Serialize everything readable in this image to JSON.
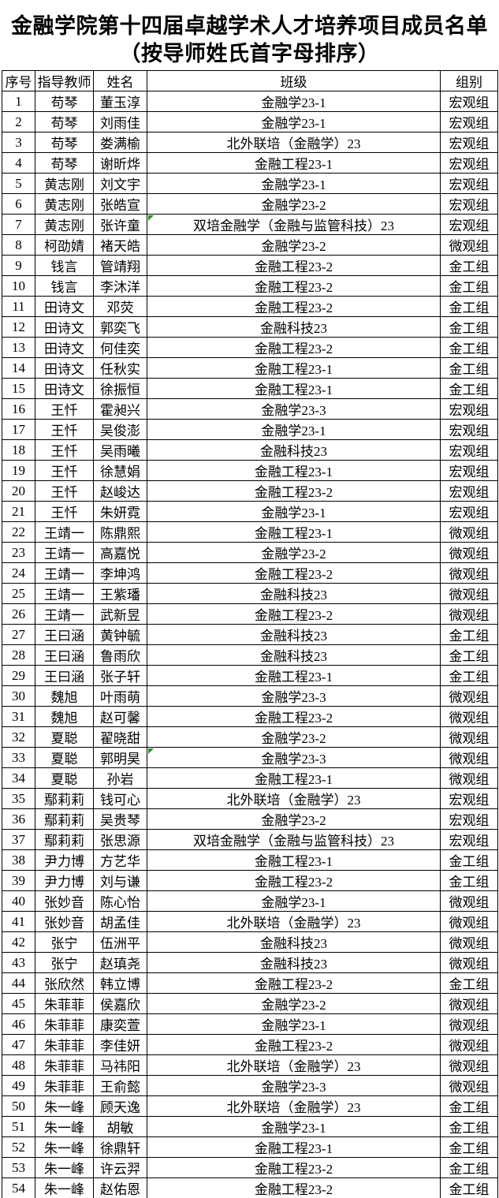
{
  "title": {
    "line1": "金融学院第十四届卓越学术人才培养项目成员名单",
    "line2": "（按导师姓氏首字母排序）"
  },
  "colors": {
    "text": "#000000",
    "border": "#000000",
    "background": "#ffffff",
    "marker_green": "#2e8b2e"
  },
  "table": {
    "headers": [
      "序号",
      "指导教师",
      "姓名",
      "班级",
      "组别"
    ],
    "rows": [
      [
        "1",
        "苟琴",
        "董玉淳",
        "金融学23-1",
        "宏观组"
      ],
      [
        "2",
        "苟琴",
        "刘雨佳",
        "金融学23-1",
        "宏观组"
      ],
      [
        "3",
        "苟琴",
        "娄满榆",
        "北外联培（金融学）23",
        "宏观组"
      ],
      [
        "4",
        "苟琴",
        "谢昕烨",
        "金融工程23-1",
        "宏观组"
      ],
      [
        "5",
        "黄志刚",
        "刘文宇",
        "金融学23-1",
        "宏观组"
      ],
      [
        "6",
        "黄志刚",
        "张皓宣",
        "金融学23-2",
        "宏观组"
      ],
      [
        "7",
        "黄志刚",
        "张许童",
        "双培金融学（金融与监管科技）23",
        "宏观组"
      ],
      [
        "8",
        "柯劭婧",
        "褚天皓",
        "金融学23-2",
        "微观组"
      ],
      [
        "9",
        "钱言",
        "管靖翔",
        "金融工程23-2",
        "金工组"
      ],
      [
        "10",
        "钱言",
        "李沐洋",
        "金融工程23-2",
        "金工组"
      ],
      [
        "11",
        "田诗文",
        "邓荧",
        "金融工程23-2",
        "金工组"
      ],
      [
        "12",
        "田诗文",
        "郭奕飞",
        "金融科技23",
        "金工组"
      ],
      [
        "13",
        "田诗文",
        "何佳奕",
        "金融工程23-2",
        "金工组"
      ],
      [
        "14",
        "田诗文",
        "任秋实",
        "金融工程23-1",
        "金工组"
      ],
      [
        "15",
        "田诗文",
        "徐振恒",
        "金融工程23-1",
        "金工组"
      ],
      [
        "16",
        "王忏",
        "霍昶兴",
        "金融学23-3",
        "宏观组"
      ],
      [
        "17",
        "王忏",
        "吴俊澎",
        "金融学23-1",
        "宏观组"
      ],
      [
        "18",
        "王忏",
        "吴雨曦",
        "金融科技23",
        "宏观组"
      ],
      [
        "19",
        "王忏",
        "徐慧娟",
        "金融工程23-1",
        "宏观组"
      ],
      [
        "20",
        "王忏",
        "赵峻达",
        "金融工程23-2",
        "宏观组"
      ],
      [
        "21",
        "王忏",
        "朱妍霓",
        "金融学23-1",
        "宏观组"
      ],
      [
        "22",
        "王靖一",
        "陈鼎熙",
        "金融工程23-1",
        "微观组"
      ],
      [
        "23",
        "王靖一",
        "高嘉悦",
        "金融学23-2",
        "微观组"
      ],
      [
        "24",
        "王靖一",
        "李坤鸿",
        "金融工程23-2",
        "微观组"
      ],
      [
        "25",
        "王靖一",
        "王紫璠",
        "金融科技23",
        "微观组"
      ],
      [
        "26",
        "王靖一",
        "武新昱",
        "金融工程23-2",
        "微观组"
      ],
      [
        "27",
        "王曰涵",
        "黄钟毓",
        "金融科技23",
        "金工组"
      ],
      [
        "28",
        "王曰涵",
        "鲁雨欣",
        "金融科技23",
        "金工组"
      ],
      [
        "29",
        "王曰涵",
        "张子轩",
        "金融工程23-1",
        "金工组"
      ],
      [
        "30",
        "魏旭",
        "叶雨萌",
        "金融学23-3",
        "微观组"
      ],
      [
        "31",
        "魏旭",
        "赵可馨",
        "金融工程23-2",
        "微观组"
      ],
      [
        "32",
        "夏聪",
        "翟晓甜",
        "金融学23-2",
        "微观组"
      ],
      [
        "33",
        "夏聪",
        "郭明昊",
        "金融学23-3",
        "微观组"
      ],
      [
        "34",
        "夏聪",
        "孙岩",
        "金融工程23-1",
        "微观组"
      ],
      [
        "35",
        "鄢莉莉",
        "钱可心",
        "北外联培（金融学）23",
        "宏观组"
      ],
      [
        "36",
        "鄢莉莉",
        "吴贵琴",
        "金融学23-2",
        "宏观组"
      ],
      [
        "37",
        "鄢莉莉",
        "张思源",
        "双培金融学（金融与监管科技）23",
        "宏观组"
      ],
      [
        "38",
        "尹力博",
        "方艺华",
        "金融工程23-1",
        "金工组"
      ],
      [
        "39",
        "尹力博",
        "刘与谦",
        "金融工程23-2",
        "金工组"
      ],
      [
        "40",
        "张妙音",
        "陈心怡",
        "金融学23-1",
        "微观组"
      ],
      [
        "41",
        "张妙音",
        "胡孟佳",
        "北外联培（金融学）23",
        "微观组"
      ],
      [
        "42",
        "张宁",
        "伍洲平",
        "金融科技23",
        "微观组"
      ],
      [
        "43",
        "张宁",
        "赵瑱尧",
        "金融科技23",
        "微观组"
      ],
      [
        "44",
        "张欣然",
        "韩立博",
        "金融工程23-2",
        "金工组"
      ],
      [
        "45",
        "朱菲菲",
        "侯嘉欣",
        "金融学23-2",
        "微观组"
      ],
      [
        "46",
        "朱菲菲",
        "康奕萱",
        "金融学23-1",
        "微观组"
      ],
      [
        "47",
        "朱菲菲",
        "李佳妍",
        "金融工程23-2",
        "微观组"
      ],
      [
        "48",
        "朱菲菲",
        "马祎阳",
        "北外联培（金融学）23",
        "微观组"
      ],
      [
        "49",
        "朱菲菲",
        "王俞懿",
        "金融学23-3",
        "微观组"
      ],
      [
        "50",
        "朱一峰",
        "顾天逸",
        "北外联培（金融学）23",
        "金工组"
      ],
      [
        "51",
        "朱一峰",
        "胡敏",
        "金融学23-1",
        "金工组"
      ],
      [
        "52",
        "朱一峰",
        "徐鼎轩",
        "金融工程23-1",
        "金工组"
      ],
      [
        "53",
        "朱一峰",
        "许云羿",
        "金融工程23-2",
        "金工组"
      ],
      [
        "54",
        "朱一峰",
        "赵佑恩",
        "金融工程23-2",
        "金工组"
      ]
    ]
  },
  "markers": [
    {
      "row_seq": "7",
      "column": "class",
      "type": "green-triangle",
      "corner": "top-left"
    },
    {
      "row_seq": "33",
      "column": "class",
      "type": "green-triangle",
      "corner": "top-left"
    }
  ]
}
